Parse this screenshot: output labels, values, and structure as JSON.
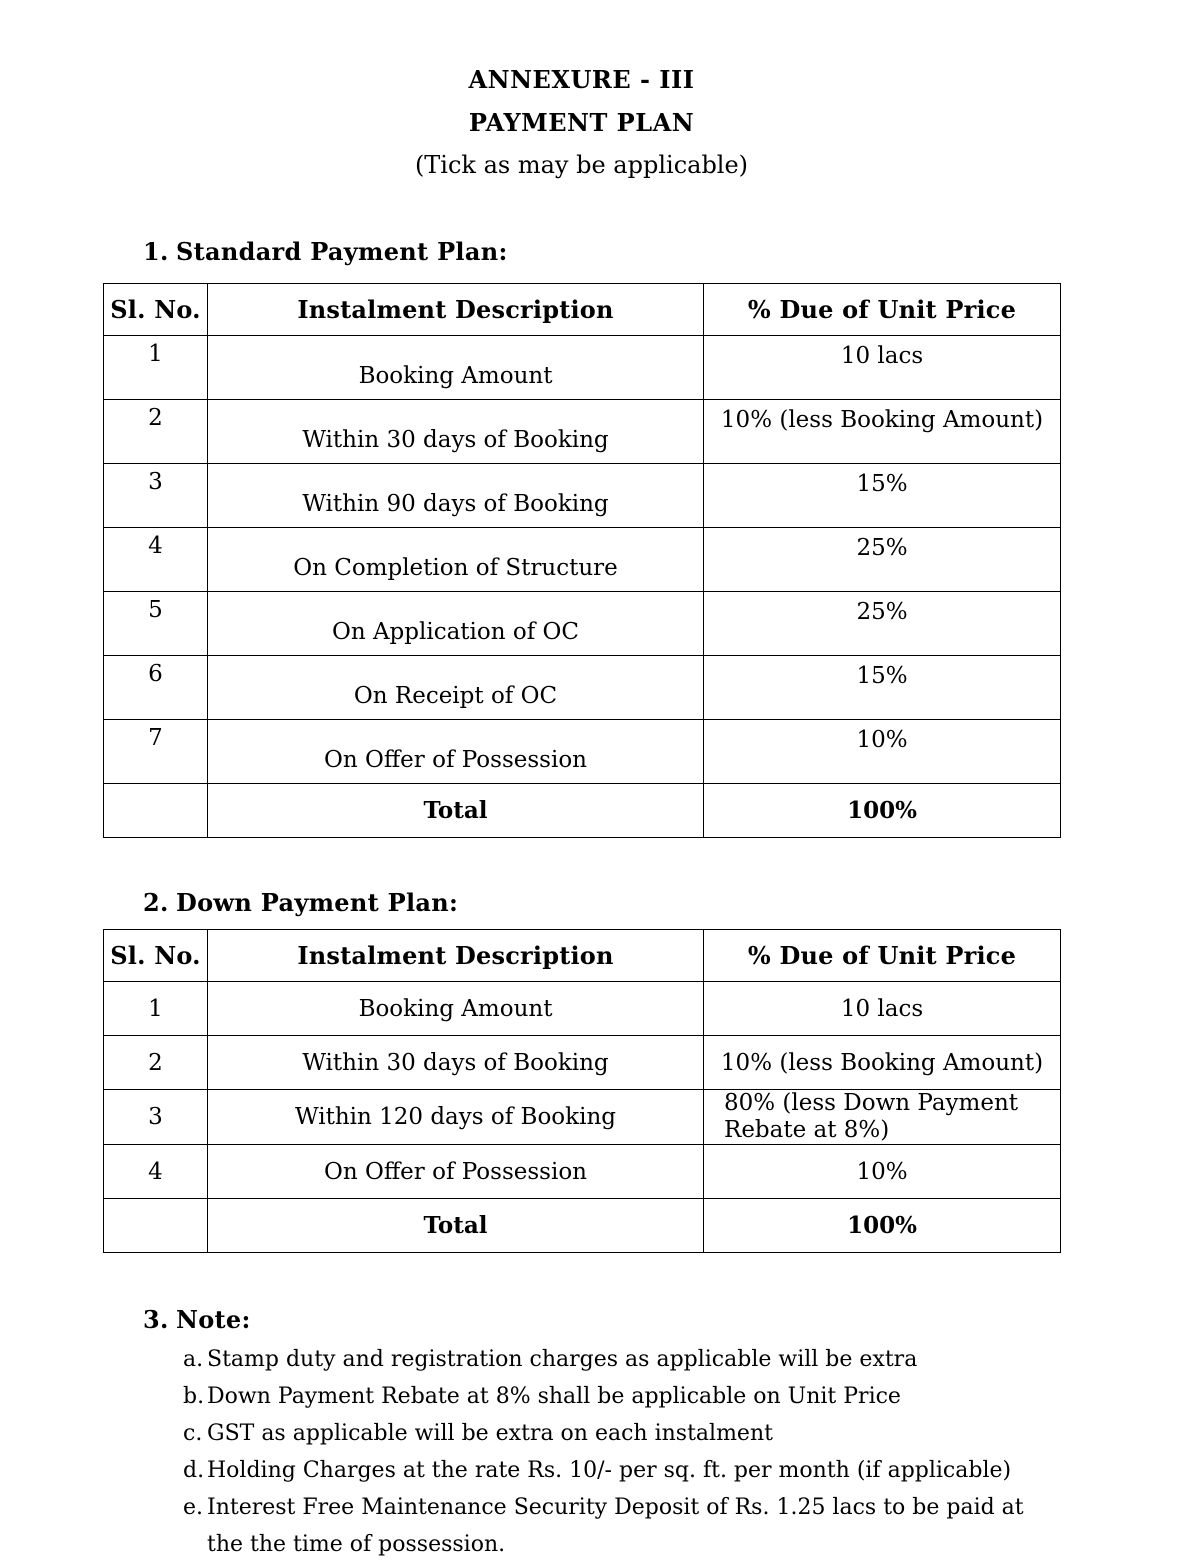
{
  "header": {
    "annexure": "ANNEXURE - III",
    "title": "PAYMENT PLAN",
    "subtitle": "(Tick as may be applicable)"
  },
  "colors": {
    "text": "#000000",
    "background": "#ffffff",
    "table_border": "#000000"
  },
  "sections": [
    {
      "number": "1.",
      "heading": "Standard Payment Plan:",
      "table": {
        "headers": [
          "Sl. No.",
          "Instalment Description",
          "% Due of Unit Price"
        ],
        "rows": [
          [
            "1",
            "Booking Amount",
            "10 lacs"
          ],
          [
            "2",
            "Within 30 days of Booking",
            "10% (less Booking Amount)"
          ],
          [
            "3",
            "Within 90 days of Booking",
            "15%"
          ],
          [
            "4",
            "On Completion of Structure",
            "25%"
          ],
          [
            "5",
            "On Application of OC",
            "25%"
          ],
          [
            "6",
            "On Receipt of OC",
            "15%"
          ],
          [
            "7",
            "On Offer of Possession",
            "10%"
          ]
        ],
        "total_label": "Total",
        "total_value": "100%"
      }
    },
    {
      "number": "2.",
      "heading": "Down Payment Plan:",
      "table": {
        "headers": [
          "Sl. No.",
          "Instalment Description",
          "% Due of Unit Price"
        ],
        "rows": [
          [
            "1",
            "Booking Amount",
            "10 lacs"
          ],
          [
            "2",
            "Within 30 days of Booking",
            "10% (less Booking Amount)"
          ],
          [
            "3",
            "Within 120 days of Booking",
            "80% (less Down Payment Rebate at 8%)"
          ],
          [
            "4",
            "On Offer of Possession",
            "10%"
          ]
        ],
        "total_label": "Total",
        "total_value": "100%"
      }
    },
    {
      "number": "3.",
      "heading": "Note:",
      "notes": [
        {
          "label": "a.",
          "text": "Stamp duty and registration charges as applicable will be extra"
        },
        {
          "label": "b.",
          "text": "Down Payment Rebate at 8% shall be applicable on Unit Price"
        },
        {
          "label": "c.",
          "text": "GST as applicable will be extra on each instalment"
        },
        {
          "label": "d.",
          "text": "Holding Charges at the rate Rs. 10/- per sq. ft. per month (if applicable)"
        },
        {
          "label": "e.",
          "text": "Interest Free Maintenance Security Deposit of Rs. 1.25 lacs to be paid at the the time of possession."
        }
      ]
    }
  ]
}
